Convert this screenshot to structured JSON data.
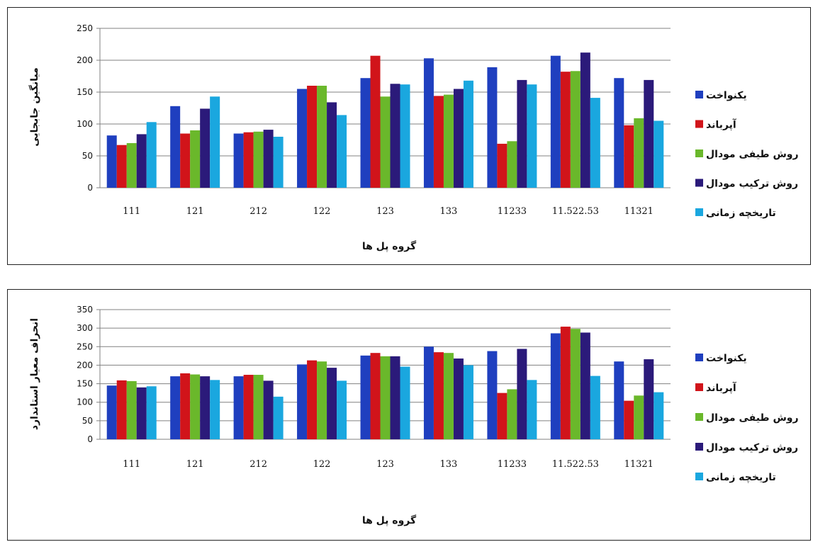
{
  "chart_data": [
    {
      "type": "bar",
      "ylabel": "میانگین جابجایی",
      "xlabel": "گروه پل ها",
      "ylim": [
        0,
        250
      ],
      "yticks": [
        0,
        50,
        100,
        150,
        200,
        250
      ],
      "grid": true,
      "legend_position": "right",
      "categories": [
        "111",
        "121",
        "212",
        "122",
        "123",
        "133",
        "11233",
        "11.522.53",
        "11321"
      ],
      "series": [
        {
          "name": "یکنواخت",
          "color": "#1f3fbf",
          "values": [
            82,
            128,
            85,
            155,
            172,
            203,
            189,
            207,
            172
          ]
        },
        {
          "name": "آپرباند",
          "color": "#d1141a",
          "values": [
            67,
            85,
            87,
            160,
            207,
            144,
            69,
            182,
            98
          ]
        },
        {
          "name": "روش طیفی مودال",
          "color": "#6ab82b",
          "values": [
            70,
            90,
            88,
            160,
            143,
            146,
            73,
            183,
            109
          ]
        },
        {
          "name": "روش ترکیب مودال",
          "color": "#2b1a7a",
          "values": [
            84,
            124,
            91,
            134,
            163,
            155,
            169,
            212,
            169
          ]
        },
        {
          "name": "تاریخچه زمانی",
          "color": "#1aa7df",
          "values": [
            103,
            143,
            80,
            114,
            162,
            168,
            162,
            141,
            105
          ]
        }
      ]
    },
    {
      "type": "bar",
      "ylabel": "انحراف معیار استاندارد",
      "xlabel": "گروه پل ها",
      "ylim": [
        0,
        350
      ],
      "yticks": [
        0,
        50,
        100,
        150,
        200,
        250,
        300,
        350
      ],
      "grid": true,
      "legend_position": "right",
      "categories": [
        "111",
        "121",
        "212",
        "122",
        "123",
        "133",
        "11233",
        "11.522.53",
        "11321"
      ],
      "series": [
        {
          "name": "یکنواخت",
          "color": "#1f3fbf",
          "values": [
            145,
            170,
            170,
            202,
            226,
            250,
            238,
            286,
            210
          ]
        },
        {
          "name": "آپرباند",
          "color": "#d1141a",
          "values": [
            159,
            178,
            174,
            213,
            233,
            235,
            125,
            304,
            104
          ]
        },
        {
          "name": "روش طیفی مودال",
          "color": "#6ab82b",
          "values": [
            157,
            175,
            174,
            210,
            224,
            233,
            135,
            298,
            118
          ]
        },
        {
          "name": "روش ترکیب مودال",
          "color": "#2b1a7a",
          "values": [
            140,
            170,
            158,
            193,
            224,
            218,
            244,
            288,
            216
          ]
        },
        {
          "name": "تاریخچه زمانی",
          "color": "#1aa7df",
          "values": [
            143,
            160,
            115,
            158,
            196,
            200,
            160,
            171,
            127
          ]
        }
      ]
    }
  ]
}
